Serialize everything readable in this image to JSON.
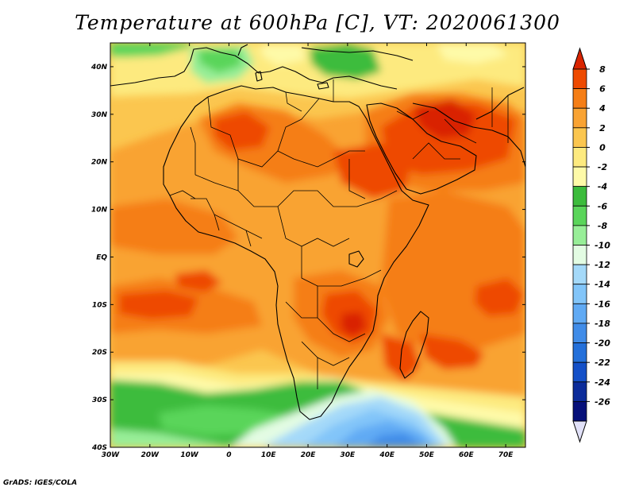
{
  "title": "Temperature at 600hPa [C], VT: 2020061300",
  "credit": "GrADS: IGES/COLA",
  "map": {
    "lon_range": [
      -30,
      75
    ],
    "lat_range": [
      -40,
      45
    ],
    "lon_ticks": [
      "30W",
      "20W",
      "10W",
      "0",
      "10E",
      "20E",
      "30E",
      "40E",
      "50E",
      "60E",
      "70E"
    ],
    "lat_ticks": [
      "40N",
      "30N",
      "20N",
      "10N",
      "EQ",
      "10S",
      "20S",
      "30S",
      "40S"
    ]
  },
  "colorbar": {
    "labels": [
      "8",
      "6",
      "4",
      "2",
      "0",
      "-2",
      "-4",
      "-6",
      "-8",
      "-10",
      "-12",
      "-14",
      "-16",
      "-18",
      "-20",
      "-22",
      "-24",
      "-26"
    ],
    "colors": [
      "#d92400",
      "#ee4a00",
      "#f57e16",
      "#f9a333",
      "#fbc64f",
      "#fdea7f",
      "#fefaa8",
      "#3cbc3c",
      "#5ad55a",
      "#98ee98",
      "#e3fce3",
      "#a4d9f9",
      "#82c5f9",
      "#60aaf4",
      "#408ce8",
      "#2470da",
      "#1450c8",
      "#0c2c9a",
      "#06107a",
      "#e1e1f8"
    ]
  }
}
